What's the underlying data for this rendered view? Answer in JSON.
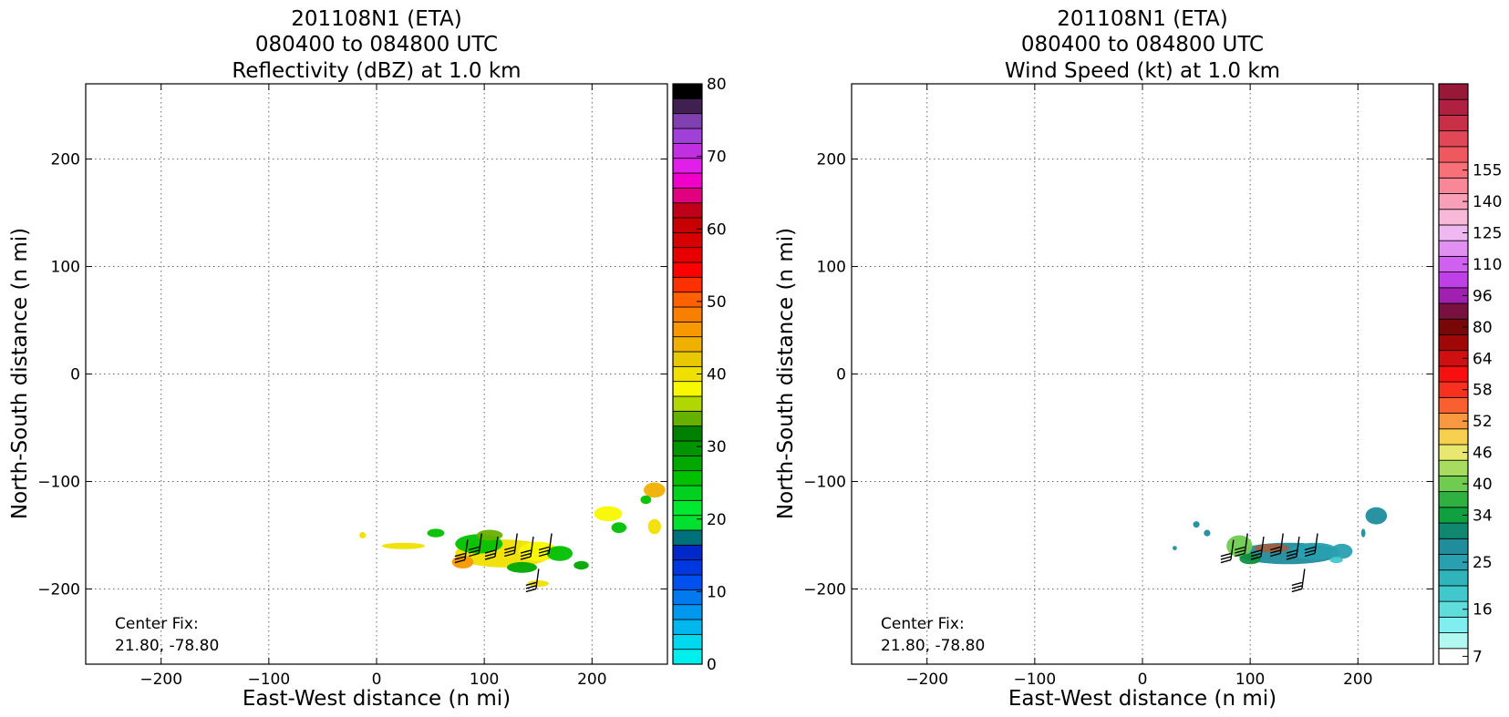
{
  "chart_data": [
    {
      "type": "heatmap",
      "title_lines": [
        "201108N1 (ETA)",
        "080400 to 084800 UTC",
        "Reflectivity (dBZ) at 1.0 km"
      ],
      "xlabel": "East-West distance (n mi)",
      "ylabel": "North-South distance (n mi)",
      "xlim": [
        -270,
        270
      ],
      "ylim": [
        -270,
        270
      ],
      "xticks": [
        -200,
        -100,
        0,
        100,
        200
      ],
      "yticks": [
        200,
        100,
        0,
        -100,
        -200
      ],
      "xtick_labels": [
        "−200",
        "−100",
        "0",
        "100",
        "200"
      ],
      "ytick_labels": [
        "200",
        "100",
        "0",
        "−100",
        "−200"
      ],
      "grid": true,
      "annotation_lines": [
        "Center Fix:",
        "21.80, -78.80"
      ],
      "colorbar": {
        "min": 0,
        "max": 80,
        "tick_values": [
          0,
          10,
          20,
          30,
          40,
          50,
          60,
          70,
          80
        ],
        "tick_labels": [
          "0",
          "10",
          "20",
          "30",
          "40",
          "50",
          "60",
          "70",
          "80"
        ],
        "colors": [
          "#00eeee",
          "#00d8ee",
          "#00b8ee",
          "#0098ee",
          "#0078ee",
          "#0050f0",
          "#0038e0",
          "#0028c8",
          "#00707a",
          "#00e030",
          "#00e830",
          "#00d020",
          "#00c000",
          "#00a800",
          "#009400",
          "#008000",
          "#66b000",
          "#b0d800",
          "#f8f800",
          "#f0e000",
          "#e8c800",
          "#f0b000",
          "#f89800",
          "#f88000",
          "#ff6000",
          "#ff3000",
          "#ff0000",
          "#e80000",
          "#d80000",
          "#c80000",
          "#c00018",
          "#e00080",
          "#f000c8",
          "#e020e8",
          "#c030e0",
          "#a040d8",
          "#8040b0",
          "#402050",
          "#000000"
        ]
      },
      "blobs": [
        {
          "x": 118,
          "y": -167,
          "rx": 45,
          "ry": 13,
          "color": "#f0e000",
          "level": "dBZ 38"
        },
        {
          "x": 95,
          "y": -158,
          "rx": 22,
          "ry": 9,
          "color": "#00c000",
          "level": "dBZ 24"
        },
        {
          "x": 150,
          "y": -165,
          "rx": 18,
          "ry": 9,
          "color": "#f8f800",
          "level": "dBZ 36"
        },
        {
          "x": 80,
          "y": -175,
          "rx": 10,
          "ry": 6,
          "color": "#f89800",
          "level": "dBZ 44"
        },
        {
          "x": 135,
          "y": -180,
          "rx": 14,
          "ry": 5,
          "color": "#00a800",
          "level": "dBZ 28"
        },
        {
          "x": 170,
          "y": -167,
          "rx": 12,
          "ry": 7,
          "color": "#00c000",
          "level": "dBZ 24"
        },
        {
          "x": 105,
          "y": -150,
          "rx": 12,
          "ry": 5,
          "color": "#66b000",
          "level": "dBZ 32"
        },
        {
          "x": 215,
          "y": -130,
          "rx": 13,
          "ry": 7,
          "color": "#f8f800",
          "level": "dBZ 36"
        },
        {
          "x": 225,
          "y": -143,
          "rx": 7,
          "ry": 5,
          "color": "#00c000",
          "level": "dBZ 24"
        },
        {
          "x": 258,
          "y": -108,
          "rx": 10,
          "ry": 7,
          "color": "#f0b000",
          "level": "dBZ 42"
        },
        {
          "x": 250,
          "y": -117,
          "rx": 5,
          "ry": 4,
          "color": "#00c000",
          "level": "dBZ 24"
        },
        {
          "x": 55,
          "y": -148,
          "rx": 8,
          "ry": 4,
          "color": "#00c000",
          "level": "dBZ 24"
        },
        {
          "x": 25,
          "y": -160,
          "rx": 20,
          "ry": 3,
          "color": "#f0e000",
          "level": "dBZ 38"
        },
        {
          "x": 190,
          "y": -178,
          "rx": 7,
          "ry": 4,
          "color": "#00a800",
          "level": "dBZ 28"
        },
        {
          "x": 150,
          "y": -195,
          "rx": 10,
          "ry": 3,
          "color": "#f0e000",
          "level": "dBZ 38"
        },
        {
          "x": 258,
          "y": -142,
          "rx": 6,
          "ry": 7,
          "color": "#f0e000",
          "level": "dBZ 38"
        },
        {
          "x": -13,
          "y": -150,
          "rx": 3,
          "ry": 3,
          "color": "#f0e000",
          "level": "dBZ 38"
        }
      ],
      "barbs": [
        {
          "x": 82,
          "y": -173
        },
        {
          "x": 95,
          "y": -167
        },
        {
          "x": 110,
          "y": -170
        },
        {
          "x": 128,
          "y": -167
        },
        {
          "x": 143,
          "y": -170
        },
        {
          "x": 160,
          "y": -167
        },
        {
          "x": 148,
          "y": -200
        }
      ]
    },
    {
      "type": "heatmap",
      "title_lines": [
        "201108N1 (ETA)",
        "080400 to 084800 UTC",
        "Wind Speed (kt) at 1.0 km"
      ],
      "xlabel": "East-West distance (n mi)",
      "ylabel": "North-South distance (n mi)",
      "xlim": [
        -270,
        270
      ],
      "ylim": [
        -270,
        270
      ],
      "xticks": [
        -200,
        -100,
        0,
        100,
        200
      ],
      "yticks": [
        200,
        100,
        0,
        -100,
        -200
      ],
      "xtick_labels": [
        "−200",
        "−100",
        "0",
        "100",
        "200"
      ],
      "ytick_labels": [
        "200",
        "100",
        "0",
        "−100",
        "−200"
      ],
      "grid": true,
      "annotation_lines": [
        "Center Fix:",
        "21.80, -78.80"
      ],
      "colorbar": {
        "levels": [
          7,
          10,
          13,
          16,
          19,
          22,
          25,
          28,
          31,
          34,
          37,
          40,
          43,
          46,
          49,
          52,
          55,
          58,
          61,
          64,
          72,
          80,
          88,
          96,
          103,
          110,
          118,
          125,
          133,
          140,
          148,
          155,
          162
        ],
        "tick_values": [
          7,
          16,
          25,
          34,
          40,
          46,
          52,
          58,
          64,
          80,
          96,
          110,
          125,
          140,
          155
        ],
        "tick_labels": [
          "7",
          "16",
          "25",
          "34",
          "40",
          "46",
          "52",
          "58",
          "64",
          "80",
          "96",
          "110",
          "125",
          "140",
          "155"
        ],
        "colors": [
          "#ffffff",
          "#b0f8f0",
          "#80eeee",
          "#60dcdc",
          "#40c8cc",
          "#30b4bc",
          "#28a0b0",
          "#208c9c",
          "#108870",
          "#10a040",
          "#30b040",
          "#70cc50",
          "#a8dc60",
          "#e8e870",
          "#f8d050",
          "#f89840",
          "#f86030",
          "#f83020",
          "#f81010",
          "#d01010",
          "#a00808",
          "#780808",
          "#781040",
          "#a020b0",
          "#c040e8",
          "#d060f0",
          "#e090f0",
          "#f0b8f0",
          "#f8b8d8",
          "#f8a0b8",
          "#f88898",
          "#f87078",
          "#f05860",
          "#e04858",
          "#c83048",
          "#b02040",
          "#981838"
        ]
      },
      "blobs": [
        {
          "x": 135,
          "y": -167,
          "rx": 48,
          "ry": 10,
          "color": "#208c9c",
          "level": "kt 27"
        },
        {
          "x": 90,
          "y": -160,
          "rx": 12,
          "ry": 10,
          "color": "#70cc50",
          "level": "kt 40"
        },
        {
          "x": 100,
          "y": -172,
          "rx": 10,
          "ry": 5,
          "color": "#109040",
          "level": "kt 34"
        },
        {
          "x": 120,
          "y": -162,
          "rx": 16,
          "ry": 4,
          "color": "#a06040",
          "level": "kt 50"
        },
        {
          "x": 160,
          "y": -165,
          "rx": 22,
          "ry": 8,
          "color": "#28a0b0",
          "level": "kt 25"
        },
        {
          "x": 217,
          "y": -132,
          "rx": 10,
          "ry": 8,
          "color": "#208c9c",
          "level": "kt 27"
        },
        {
          "x": 185,
          "y": -165,
          "rx": 10,
          "ry": 7,
          "color": "#28a0b0",
          "level": "kt 25"
        },
        {
          "x": 180,
          "y": -173,
          "rx": 6,
          "ry": 3,
          "color": "#40c8cc",
          "level": "kt 19"
        },
        {
          "x": 50,
          "y": -140,
          "rx": 3,
          "ry": 3,
          "color": "#208c9c",
          "level": "kt 27"
        },
        {
          "x": 60,
          "y": -148,
          "rx": 3,
          "ry": 3,
          "color": "#208c9c",
          "level": "kt 27"
        },
        {
          "x": 30,
          "y": -162,
          "rx": 2,
          "ry": 2,
          "color": "#208c9c",
          "level": "kt 27"
        },
        {
          "x": 205,
          "y": -148,
          "rx": 2,
          "ry": 4,
          "color": "#208c9c",
          "level": "kt 27"
        }
      ],
      "barbs": [
        {
          "x": 82,
          "y": -173
        },
        {
          "x": 95,
          "y": -167
        },
        {
          "x": 110,
          "y": -170
        },
        {
          "x": 128,
          "y": -167
        },
        {
          "x": 143,
          "y": -170
        },
        {
          "x": 160,
          "y": -167
        },
        {
          "x": 148,
          "y": -200
        }
      ]
    }
  ]
}
